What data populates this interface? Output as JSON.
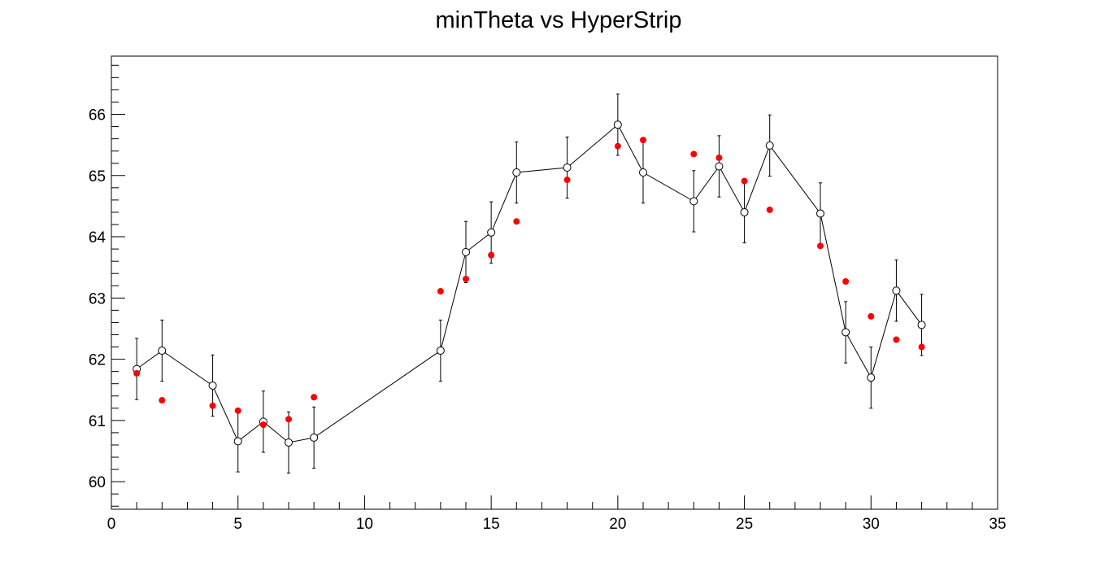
{
  "chart_data": {
    "type": "scatter",
    "title": "minTheta vs HyperStrip",
    "xlabel": "",
    "ylabel": "",
    "xlim": [
      0,
      35
    ],
    "ylim": [
      59.55,
      66.95
    ],
    "grid": false,
    "x_ticks": [
      0,
      5,
      10,
      15,
      20,
      25,
      30,
      35
    ],
    "y_ticks": [
      60,
      61,
      62,
      63,
      64,
      65,
      66
    ],
    "colors": {
      "line_series": "#000000",
      "marker_series": "#ff0000"
    },
    "series": [
      {
        "style": "line-open-circles-errorbars",
        "points": [
          {
            "x": 1,
            "y": 61.84,
            "err": 0.5
          },
          {
            "x": 2,
            "y": 62.14,
            "err": 0.5
          },
          {
            "x": 4,
            "y": 61.57,
            "err": 0.5
          },
          {
            "x": 5,
            "y": 60.66,
            "err": 0.5
          },
          {
            "x": 6,
            "y": 60.98,
            "err": 0.5
          },
          {
            "x": 7,
            "y": 60.64,
            "err": 0.5
          },
          {
            "x": 8,
            "y": 60.72,
            "err": 0.5
          },
          {
            "x": 13,
            "y": 62.14,
            "err": 0.5
          },
          {
            "x": 14,
            "y": 63.75,
            "err": 0.5
          },
          {
            "x": 15,
            "y": 64.07,
            "err": 0.5
          },
          {
            "x": 16,
            "y": 65.05,
            "err": 0.5
          },
          {
            "x": 18,
            "y": 65.13,
            "err": 0.5
          },
          {
            "x": 20,
            "y": 65.83,
            "err": 0.5
          },
          {
            "x": 21,
            "y": 65.05,
            "err": 0.5
          },
          {
            "x": 23,
            "y": 64.58,
            "err": 0.5
          },
          {
            "x": 24,
            "y": 65.15,
            "err": 0.5
          },
          {
            "x": 25,
            "y": 64.4,
            "err": 0.5
          },
          {
            "x": 26,
            "y": 65.49,
            "err": 0.5
          },
          {
            "x": 28,
            "y": 64.38,
            "err": 0.5
          },
          {
            "x": 29,
            "y": 62.44,
            "err": 0.5
          },
          {
            "x": 30,
            "y": 61.7,
            "err": 0.5
          },
          {
            "x": 31,
            "y": 63.12,
            "err": 0.5
          },
          {
            "x": 32,
            "y": 62.56,
            "err": 0.5
          }
        ]
      },
      {
        "style": "filled-red-markers",
        "points": [
          {
            "x": 1,
            "y": 61.77
          },
          {
            "x": 2,
            "y": 61.33
          },
          {
            "x": 4,
            "y": 61.24
          },
          {
            "x": 5,
            "y": 61.16
          },
          {
            "x": 6,
            "y": 60.93
          },
          {
            "x": 7,
            "y": 61.02
          },
          {
            "x": 8,
            "y": 61.38
          },
          {
            "x": 13,
            "y": 63.11
          },
          {
            "x": 14,
            "y": 63.31
          },
          {
            "x": 15,
            "y": 63.7
          },
          {
            "x": 16,
            "y": 64.25
          },
          {
            "x": 18,
            "y": 64.93
          },
          {
            "x": 20,
            "y": 65.48
          },
          {
            "x": 21,
            "y": 65.58
          },
          {
            "x": 23,
            "y": 65.35
          },
          {
            "x": 24,
            "y": 65.29
          },
          {
            "x": 25,
            "y": 64.91
          },
          {
            "x": 26,
            "y": 64.44
          },
          {
            "x": 28,
            "y": 63.85
          },
          {
            "x": 29,
            "y": 63.27
          },
          {
            "x": 30,
            "y": 62.7
          },
          {
            "x": 31,
            "y": 62.32
          },
          {
            "x": 32,
            "y": 62.2
          }
        ]
      }
    ]
  }
}
